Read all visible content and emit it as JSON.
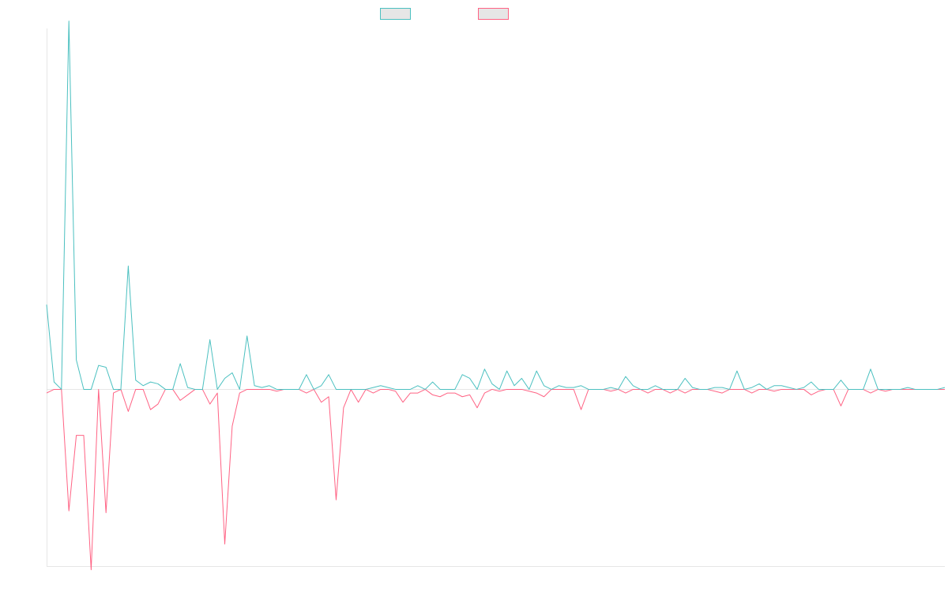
{
  "chart_data": {
    "type": "line",
    "title": "",
    "xlabel": "",
    "ylabel": "",
    "grid": false,
    "legend_position": "top-center",
    "ylim": [
      -4.8,
      9.8
    ],
    "series": [
      {
        "name": "",
        "color": "#4bc0c0",
        "values": [
          2.3,
          0.2,
          0.0,
          10.0,
          0.8,
          0.0,
          0.0,
          0.65,
          0.6,
          0.0,
          0.0,
          3.35,
          0.25,
          0.1,
          0.2,
          0.15,
          0.0,
          0.0,
          0.7,
          0.05,
          0.0,
          0.0,
          1.35,
          0.0,
          0.3,
          0.45,
          0.0,
          1.45,
          0.1,
          0.05,
          0.1,
          0.0,
          0.0,
          0.0,
          0.0,
          0.4,
          0.0,
          0.1,
          0.4,
          0.0,
          0.0,
          0.0,
          0.0,
          0.0,
          0.05,
          0.1,
          0.05,
          0.0,
          0.0,
          0.0,
          0.1,
          0.0,
          0.2,
          0.0,
          0.0,
          0.0,
          0.4,
          0.3,
          0.0,
          0.55,
          0.15,
          0.0,
          0.5,
          0.1,
          0.3,
          0.0,
          0.5,
          0.1,
          0.0,
          0.1,
          0.05,
          0.05,
          0.1,
          0.0,
          0.0,
          0.0,
          0.05,
          0.0,
          0.35,
          0.1,
          0.0,
          0.0,
          0.1,
          0.0,
          0.0,
          0.0,
          0.3,
          0.05,
          0.0,
          0.0,
          0.05,
          0.05,
          0.0,
          0.5,
          0.0,
          0.05,
          0.15,
          0.0,
          0.1,
          0.1,
          0.05,
          0.0,
          0.05,
          0.2,
          0.0,
          0.0,
          0.0,
          0.25,
          0.0,
          0.0,
          0.0,
          0.55,
          0.0,
          0.0,
          0.0,
          0.0,
          0.05,
          0.0,
          0.0,
          0.0,
          0.0,
          0.05
        ]
      },
      {
        "name": "",
        "color": "#ff6384",
        "values": [
          -0.1,
          0.0,
          0.0,
          -3.3,
          -1.25,
          -1.25,
          -4.9,
          0.0,
          -3.35,
          -0.1,
          0.0,
          -0.6,
          0.0,
          0.0,
          -0.55,
          -0.4,
          0.0,
          0.0,
          -0.3,
          -0.15,
          0.0,
          0.0,
          -0.4,
          -0.1,
          -4.2,
          -1.0,
          -0.1,
          0.0,
          0.0,
          0.0,
          0.0,
          -0.05,
          0.0,
          0.0,
          0.0,
          -0.1,
          0.0,
          -0.35,
          -0.2,
          -3.0,
          -0.5,
          0.0,
          -0.35,
          0.0,
          -0.1,
          0.0,
          0.0,
          -0.05,
          -0.35,
          -0.1,
          -0.1,
          0.0,
          -0.15,
          -0.2,
          -0.1,
          -0.1,
          -0.2,
          -0.15,
          -0.5,
          -0.1,
          0.0,
          -0.05,
          0.0,
          0.0,
          0.0,
          -0.05,
          -0.1,
          -0.2,
          0.0,
          0.0,
          0.0,
          0.0,
          -0.55,
          0.0,
          0.0,
          0.0,
          -0.05,
          0.0,
          -0.1,
          0.0,
          0.0,
          -0.1,
          0.0,
          0.0,
          -0.1,
          0.0,
          -0.1,
          0.0,
          0.0,
          0.0,
          -0.05,
          -0.1,
          0.0,
          0.0,
          0.0,
          -0.1,
          0.0,
          0.0,
          -0.05,
          0.0,
          0.0,
          0.0,
          0.0,
          -0.15,
          -0.05,
          0.0,
          0.0,
          -0.45,
          0.0,
          0.0,
          0.0,
          -0.1,
          0.0,
          -0.05,
          0.0,
          0.0,
          0.0,
          0.0,
          0.0,
          0.0,
          0.0,
          0.0
        ]
      }
    ]
  }
}
